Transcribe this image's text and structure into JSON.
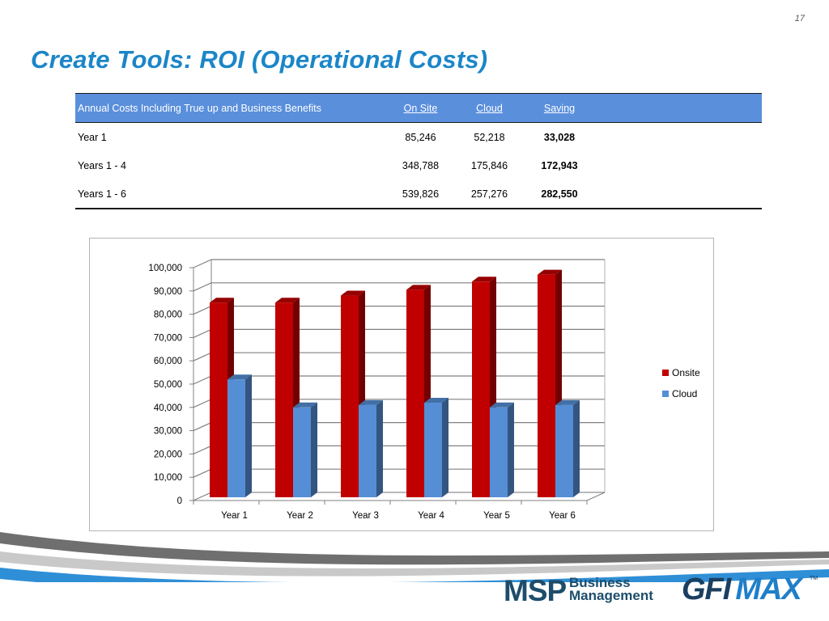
{
  "page_number": "17",
  "title": "Create Tools: ROI (Operational Costs)",
  "table": {
    "headers": [
      "Annual Costs Including True up and Business Benefits",
      "On Site",
      "Cloud",
      "Saving"
    ],
    "rows": [
      {
        "label": "Year 1",
        "onsite": "85,246",
        "cloud": "52,218",
        "saving": "33,028"
      },
      {
        "label": "Years 1 - 4",
        "onsite": "348,788",
        "cloud": "175,846",
        "saving": "172,943"
      },
      {
        "label": "Years 1 - 6",
        "onsite": "539,826",
        "cloud": "257,276",
        "saving": "282,550"
      }
    ]
  },
  "chart_data": {
    "type": "bar",
    "title": "",
    "xlabel": "",
    "ylabel": "",
    "categories": [
      "Year 1",
      "Year 2",
      "Year 3",
      "Year 4",
      "Year 5",
      "Year 6"
    ],
    "series": [
      {
        "name": "Onsite",
        "values": [
          85000,
          85000,
          88000,
          90500,
          94000,
          97000
        ],
        "color": "#c00000"
      },
      {
        "name": "Cloud",
        "values": [
          52000,
          40000,
          41000,
          42000,
          40000,
          41000
        ],
        "color": "#558ed5"
      }
    ],
    "ylim": [
      0,
      100000
    ],
    "yticks": [
      "0",
      "10,000",
      "20,000",
      "30,000",
      "40,000",
      "50,000",
      "60,000",
      "70,000",
      "80,000",
      "90,000",
      "100,000"
    ],
    "grid": true,
    "legend_position": "right",
    "style": "3d-clustered-column"
  },
  "logos": {
    "msp": "MSP",
    "msp_line1": "Business",
    "msp_line2": "Management",
    "gfi": "GFI",
    "max": "MAX",
    "tm": "TM"
  }
}
